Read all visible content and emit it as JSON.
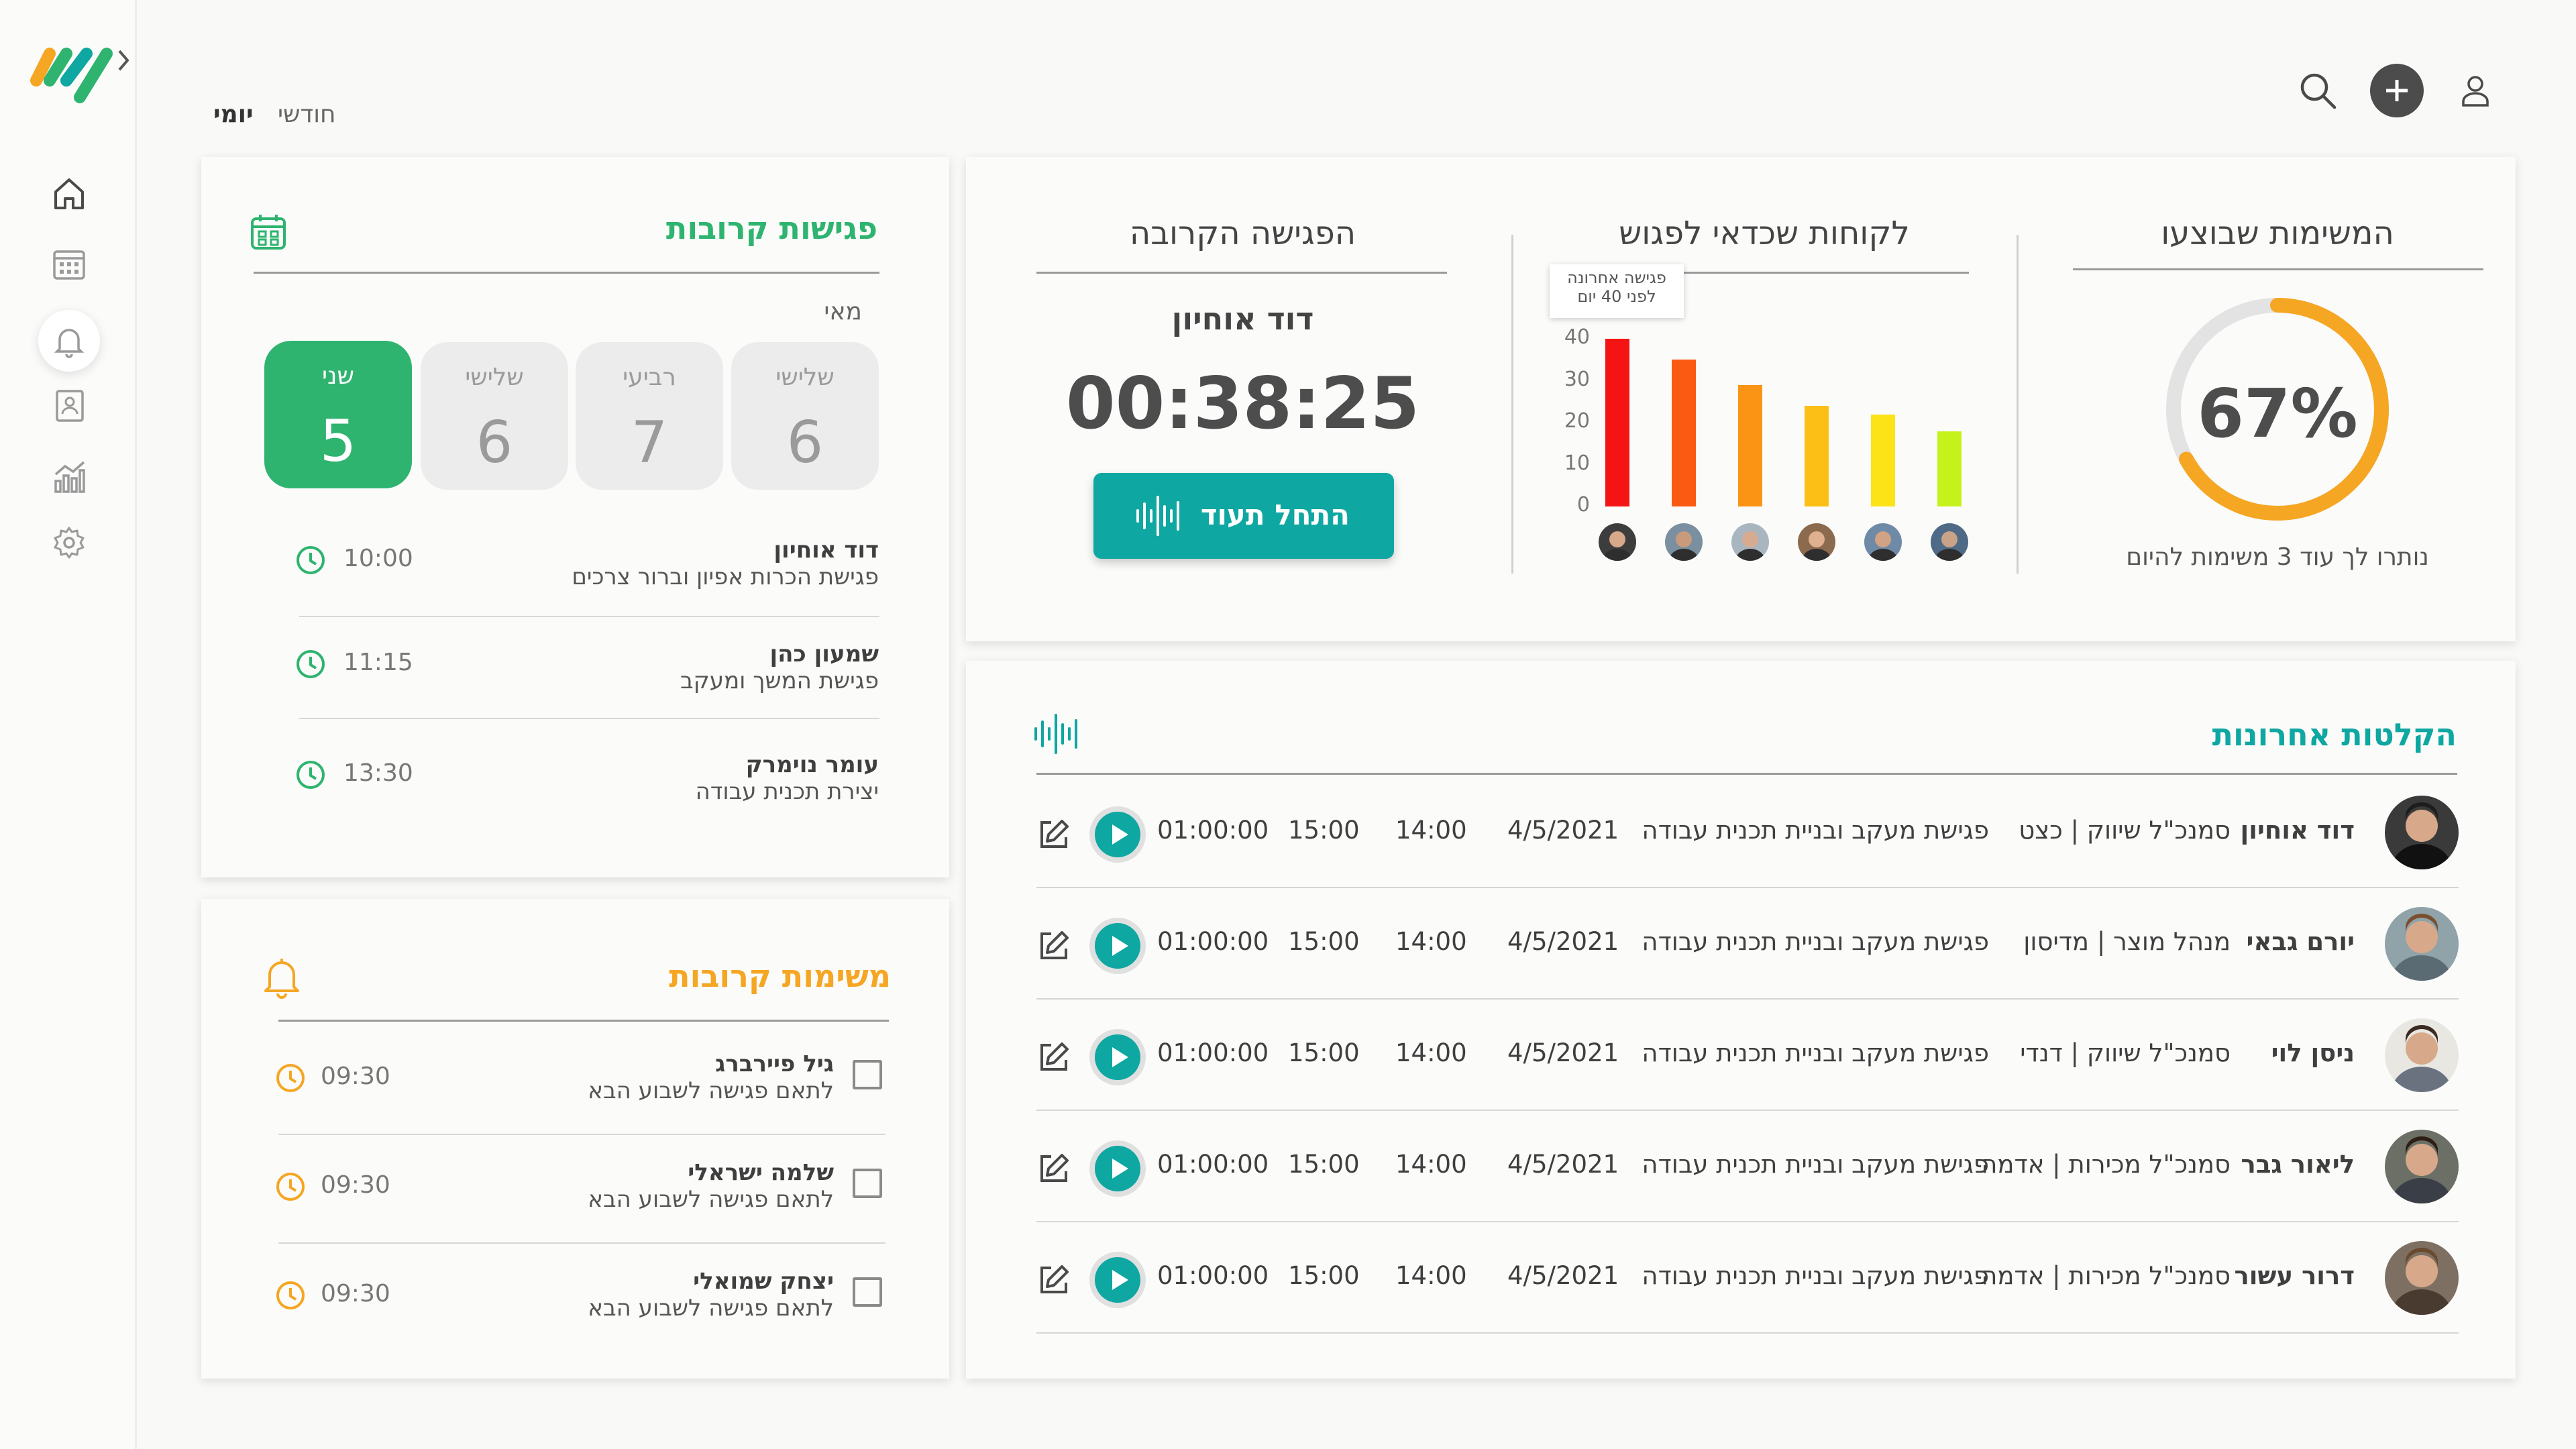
{
  "tabs": {
    "daily": "יומי",
    "monthly": "חודשי"
  },
  "colors": {
    "green": "#2eb46f",
    "teal": "#0ea7a1",
    "orange": "#f5a623"
  },
  "tasks_done": {
    "title": "המשימות שבוצעו",
    "percent_label": "67%",
    "percent": 67,
    "remaining": "נותרו לך עוד 3 משימות להיום"
  },
  "clients": {
    "title": "לקוחות שכדאי לפגוש",
    "tooltip_line1": "פגישה אחרונה",
    "tooltip_line2": "לפני 40 יום"
  },
  "chart_data": {
    "type": "bar",
    "values": [
      40,
      35,
      29,
      24,
      22,
      18
    ],
    "colors": [
      "#f41414",
      "#fa5a12",
      "#fb9415",
      "#fcbf16",
      "#fbe318",
      "#c6f21c"
    ],
    "yticks": [
      "0",
      "10",
      "20",
      "30",
      "40"
    ],
    "ylim": [
      0,
      40
    ]
  },
  "next_meeting": {
    "title": "הפגישה הקרובה",
    "name": "דוד אוחיון",
    "countdown": "00:38:25",
    "button": "התחל תעוד"
  },
  "meetings": {
    "title": "פגישות קרובות",
    "month": "מאי",
    "days": [
      {
        "name": "שלישי",
        "num": "6"
      },
      {
        "name": "רביעי",
        "num": "7"
      },
      {
        "name": "שלישי",
        "num": "6"
      },
      {
        "name": "שני",
        "num": "5"
      }
    ],
    "items": [
      {
        "name": "דוד אוחיון",
        "desc": "פגישת הכרות אפיון וברור צרכים",
        "time": "10:00"
      },
      {
        "name": "שמעון כהן",
        "desc": "פגישת המשך ומעקב",
        "time": "11:15"
      },
      {
        "name": "עומר נוימרק",
        "desc": "יצירת תכנית עבודה",
        "time": "13:30"
      }
    ]
  },
  "tasks": {
    "title": "משימות קרובות",
    "items": [
      {
        "name": "גיל פיירברג",
        "desc": "לתאם פגישה לשבוע הבא",
        "time": "09:30"
      },
      {
        "name": "שלמה ישראלי",
        "desc": "לתאם פגישה לשבוע הבא",
        "time": "09:30"
      },
      {
        "name": "יצחק שמואלי",
        "desc": "לתאם פגישה לשבוע הבא",
        "time": "09:30"
      }
    ]
  },
  "recordings": {
    "title": "הקלטות אחרונות",
    "rows": [
      {
        "name": "דוד אוחיון",
        "role": "סמנכ\"ל שיווק | כצט",
        "subject": "פגישת מעקב ובניית תכנית עבודה",
        "date": "4/5/2021",
        "start": "14:00",
        "end": "15:00",
        "duration": "01:00:00"
      },
      {
        "name": "יורם גבאי",
        "role": "מנהל מוצר | מדיסון",
        "subject": "פגישת מעקב ובניית תכנית עבודה",
        "date": "4/5/2021",
        "start": "14:00",
        "end": "15:00",
        "duration": "01:00:00"
      },
      {
        "name": "ניסן לוי",
        "role": "סמנכ\"ל שיווק | דנדי",
        "subject": "פגישת מעקב ובניית תכנית עבודה",
        "date": "4/5/2021",
        "start": "14:00",
        "end": "15:00",
        "duration": "01:00:00"
      },
      {
        "name": "ליאור גבר",
        "role": "סמנכ\"ל מכירות | אדמה",
        "subject": "פגישת מעקב ובניית תכנית עבודה",
        "date": "4/5/2021",
        "start": "14:00",
        "end": "15:00",
        "duration": "01:00:00"
      },
      {
        "name": "דרור עשור",
        "role": "סמנכ\"ל מכירות | אדמה",
        "subject": "פגישת מעקב ובניית תכנית עבודה",
        "date": "4/5/2021",
        "start": "14:00",
        "end": "15:00",
        "duration": "01:00:00"
      }
    ]
  },
  "icons": [
    "logo",
    "chevron-right-icon",
    "home-icon",
    "calendar-icon",
    "bell-icon",
    "contacts-icon",
    "chart-icon",
    "gear-icon",
    "search-icon",
    "plus-icon",
    "user-icon",
    "waveform-icon",
    "clock-icon",
    "edit-icon",
    "play-icon"
  ]
}
